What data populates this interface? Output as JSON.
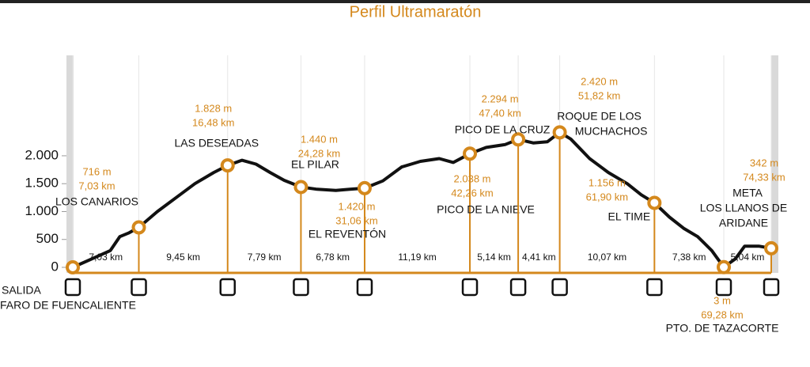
{
  "chart_data": {
    "type": "line",
    "title": "Perfil Ultramaratón",
    "xlim": [
      0,
      74.33
    ],
    "ylim": [
      0,
      3800
    ],
    "yticks": [
      0,
      500,
      {
        "value": 1000,
        "label": "1.000"
      },
      {
        "value": 1500,
        "label": "1.500"
      },
      {
        "value": 2000,
        "label": "2.000"
      }
    ],
    "series": [
      {
        "name": "perfil",
        "color": "#111111",
        "x": [
          0,
          2,
          4,
          5,
          6,
          7.03,
          9,
          11,
          13,
          15,
          16.48,
          18,
          19.5,
          21,
          22.5,
          24.28,
          26,
          28,
          29.5,
          31.06,
          33,
          35,
          37,
          39,
          40.5,
          42.26,
          44,
          46,
          47.4,
          49,
          50.5,
          51.82,
          53,
          55,
          57,
          59,
          60.5,
          61.9,
          63.5,
          65,
          66.5,
          68,
          69.28,
          70.5,
          71.5,
          73,
          74.33
        ],
        "values": [
          0,
          150,
          300,
          550,
          620,
          716,
          1000,
          1250,
          1500,
          1700,
          1828,
          1920,
          1850,
          1700,
          1560,
          1440,
          1400,
          1380,
          1400,
          1420,
          1550,
          1800,
          1900,
          1950,
          1880,
          2038,
          2150,
          2200,
          2294,
          2230,
          2250,
          2420,
          2300,
          1950,
          1700,
          1500,
          1300,
          1156,
          900,
          700,
          550,
          300,
          3,
          150,
          380,
          380,
          342
        ]
      }
    ],
    "waypoints": {
      "names": [
        [
          "SALIDA",
          "FARO DE FUENCALIENTE"
        ],
        [
          "LOS CANARIOS"
        ],
        [
          "LAS DESEADAS"
        ],
        [
          "EL PILAR"
        ],
        [
          "EL REVENTÓN"
        ],
        [
          "PICO DE LA NIEVE"
        ],
        [
          "PICO DE LA CRUZ"
        ],
        [
          "ROQUE DE LOS",
          "MUCHACHOS"
        ],
        [
          "EL TIME"
        ],
        [
          "PTO. DE  TAZACORTE"
        ],
        [
          "META",
          "LOS LLANOS DE",
          "ARIDANE"
        ]
      ],
      "x": [
        0,
        7.03,
        16.48,
        24.28,
        31.06,
        42.26,
        47.4,
        51.82,
        61.9,
        69.28,
        74.33
      ],
      "values": [
        0,
        716,
        1828,
        1440,
        1420,
        2038,
        2294,
        2420,
        1156,
        3,
        342
      ],
      "value_labels": [
        null,
        "716 m",
        "1.828 m",
        "1.440 m",
        "1.420 m",
        "2.038 m",
        "2.294 m",
        "2.420 m",
        "1.156 m",
        "3 m",
        "342 m"
      ],
      "x_labels": [
        null,
        "7,03 km",
        "16,48 km",
        "24,28 km",
        "31,06 km",
        "42,26 km",
        "47,40 km",
        "51,82 km",
        "61,90 km",
        "69,28 km",
        "74,33 km"
      ]
    },
    "segment_labels": [
      "7,03 km",
      "9,45 km",
      "7,79 km",
      "6,78 km",
      "11,19 km",
      "5,14 km",
      "4,41 km",
      "10,07 km",
      "7,38 km",
      "5,04 km"
    ]
  }
}
